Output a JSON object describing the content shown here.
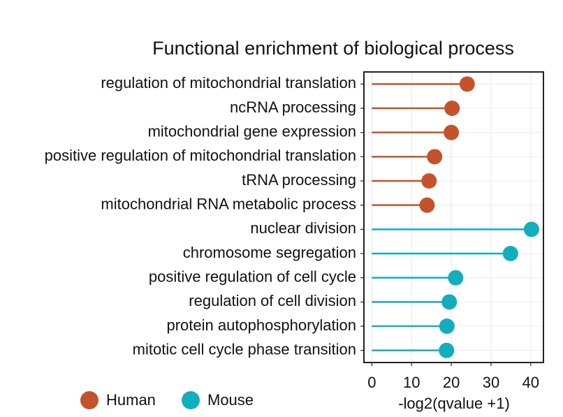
{
  "chart_data": {
    "type": "lollipop",
    "title": "Functional enrichment of biological process",
    "x_label": "-log2(qvalue +1)",
    "categories": [
      "regulation of mitochondrial translation",
      "ncRNA processing",
      "mitochondrial gene expression",
      "positive regulation of mitochondrial translation",
      "tRNA processing",
      "mitochondrial RNA metabolic process",
      "nuclear division",
      "chromosome segregation",
      "positive regulation of cell cycle",
      "regulation of cell division",
      "protein autophosphorylation",
      "mitotic cell cycle phase transition"
    ],
    "series": [
      {
        "name": "Human",
        "color": "#c4532b",
        "values": [
          24.0,
          20.2,
          20.0,
          15.8,
          14.4,
          13.9,
          null,
          null,
          null,
          null,
          null,
          null
        ]
      },
      {
        "name": "Mouse",
        "color": "#12aebd",
        "values": [
          null,
          null,
          null,
          null,
          null,
          null,
          40.2,
          34.9,
          21.1,
          19.5,
          18.9,
          18.8
        ]
      }
    ],
    "xlim": [
      -2,
      43.2
    ],
    "xticks": [
      0,
      10,
      20,
      30,
      40
    ],
    "grid": true,
    "legend": "bottom"
  }
}
